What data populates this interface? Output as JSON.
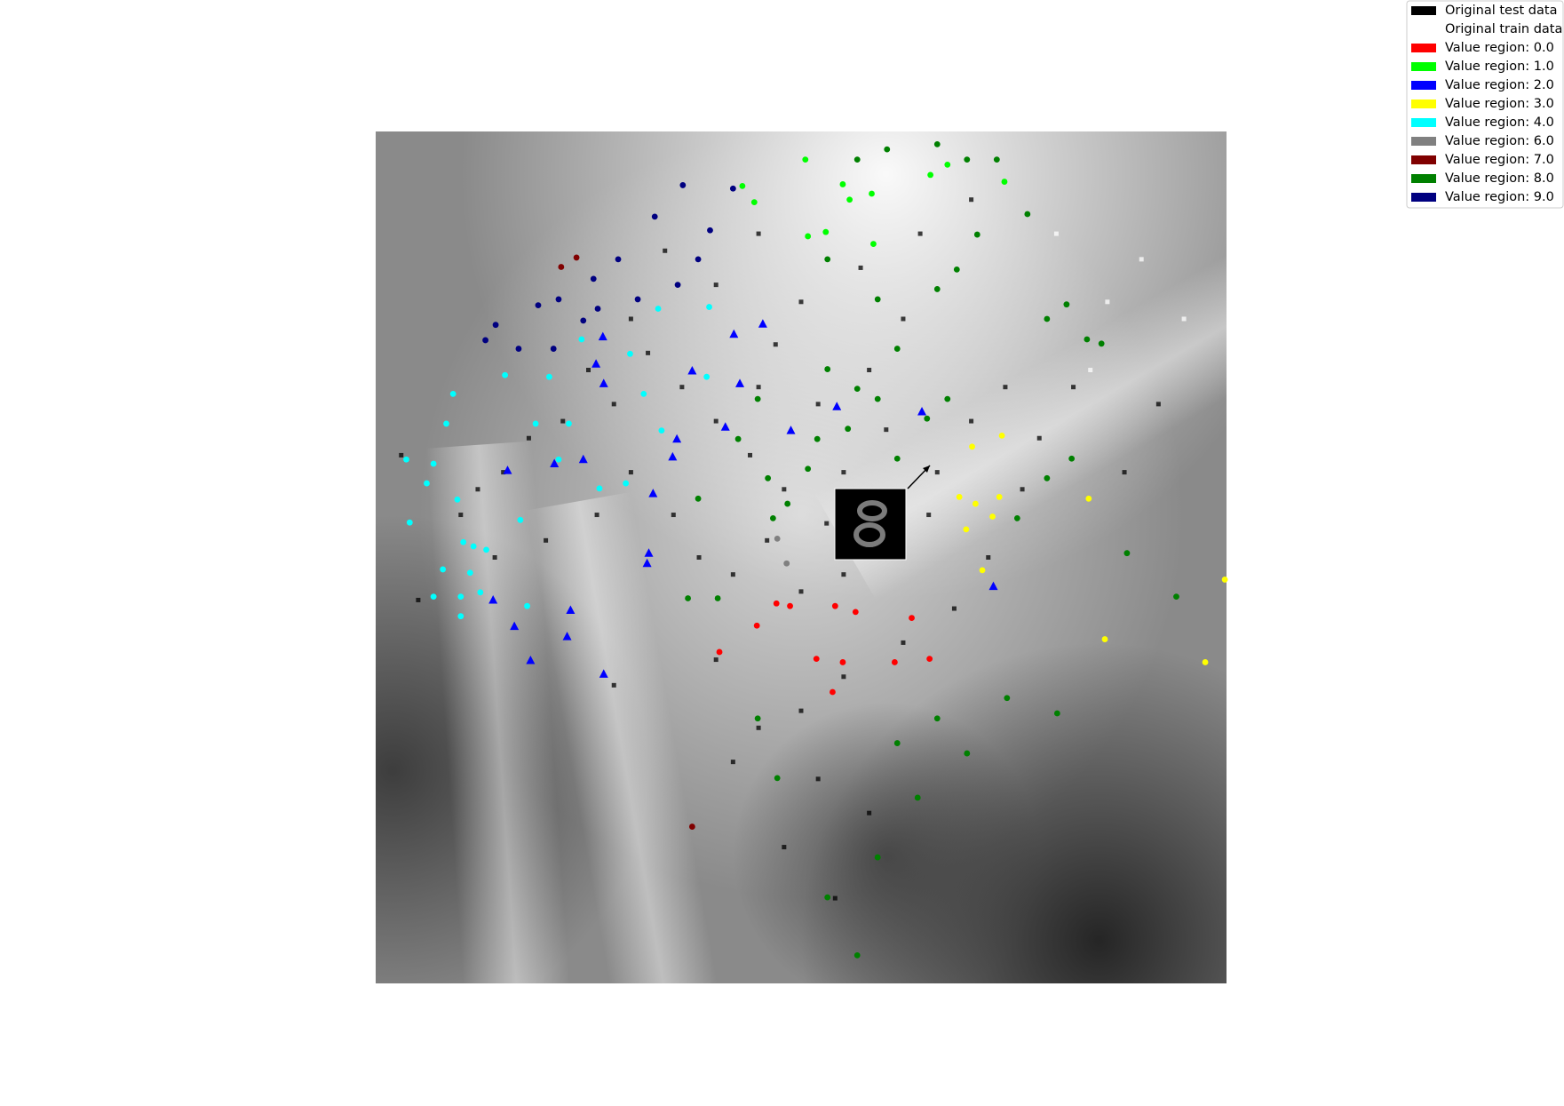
{
  "chart_data": {
    "type": "scatter",
    "xlim": [
      0,
      100
    ],
    "ylim": [
      0,
      100
    ],
    "legend": "upper right",
    "series": [
      {
        "name": "Original test data",
        "color": "#000000",
        "marker": "s",
        "x": [
          45,
          47,
          50,
          52,
          55,
          58,
          60,
          62,
          65,
          48,
          44,
          40,
          36,
          32,
          28,
          25,
          22,
          18,
          15,
          12,
          10,
          14,
          20,
          26,
          30,
          35,
          38,
          42,
          50,
          55,
          60,
          66,
          70,
          74,
          78,
          76,
          72,
          68,
          62,
          55,
          50,
          45,
          52,
          58,
          48,
          54,
          42,
          40,
          46,
          53,
          57,
          45,
          40,
          34,
          30,
          64,
          70,
          3,
          5,
          28,
          92,
          88,
          82
        ],
        "y": [
          70,
          75,
          80,
          68,
          60,
          72,
          65,
          78,
          55,
          58,
          62,
          66,
          70,
          74,
          68,
          72,
          66,
          64,
          60,
          58,
          55,
          50,
          52,
          55,
          60,
          55,
          50,
          48,
          46,
          48,
          50,
          60,
          66,
          70,
          64,
          58,
          50,
          44,
          40,
          36,
          32,
          30,
          24,
          20,
          16,
          10,
          26,
          38,
          52,
          54,
          84,
          88,
          82,
          86,
          78,
          88,
          92,
          62,
          45,
          35,
          68,
          60,
          70
        ]
      },
      {
        "name": "Original train data",
        "color": "#ffffff",
        "marker": "s",
        "x": [
          86,
          90,
          95,
          80,
          84
        ],
        "y": [
          80,
          85,
          78,
          88,
          72
        ]
      },
      {
        "name": "Value region: 0.0",
        "color": "#ff0000",
        "marker": "o",
        "x": [
          47.1,
          48.7,
          54.0,
          56.4,
          63.0,
          44.8,
          40.4,
          51.8,
          54.9,
          61.0,
          53.7,
          65.1
        ],
        "y": [
          44.6,
          44.3,
          44.3,
          43.6,
          42.9,
          42.0,
          38.9,
          38.1,
          37.7,
          37.7,
          34.2,
          38.1
        ]
      },
      {
        "name": "Value region: 1.0",
        "color": "#00ff00",
        "marker": "o",
        "x": [
          50.5,
          54.9,
          58.3,
          50.8,
          52.9,
          58.5,
          43.1,
          44.5,
          55.7,
          73.9,
          65.2,
          67.2
        ],
        "y": [
          96.7,
          93.8,
          92.7,
          87.7,
          88.2,
          86.8,
          93.6,
          91.7,
          92.0,
          94.1,
          94.9,
          96.1
        ]
      },
      {
        "name": "Value region: 2.0",
        "color": "#0000ff",
        "marker": "^",
        "x": [
          26.7,
          25.9,
          37.2,
          42.1,
          45.5,
          42.8,
          26.8,
          54.2,
          64.2,
          48.8,
          41.1,
          35.4,
          34.9,
          24.4,
          21.0,
          15.5,
          32.6,
          32.1,
          31.9,
          13.8,
          22.9,
          16.3,
          22.5,
          18.2,
          26.8,
          72.6
        ],
        "y": [
          75.9,
          72.7,
          71.9,
          76.2,
          77.4,
          70.4,
          70.4,
          67.7,
          67.1,
          64.9,
          65.3,
          63.9,
          61.8,
          61.5,
          61.0,
          60.2,
          57.5,
          50.5,
          49.3,
          45.0,
          43.8,
          41.9,
          40.7,
          37.9,
          36.3,
          46.6
        ]
      },
      {
        "name": "Value region: 3.0",
        "color": "#ffff00",
        "marker": "o",
        "x": [
          70.1,
          73.6,
          68.6,
          70.5,
          73.3,
          72.5,
          69.4,
          83.8,
          99.8,
          85.7,
          97.5,
          71.3
        ],
        "y": [
          63.0,
          64.3,
          57.1,
          56.3,
          57.1,
          54.8,
          53.3,
          56.9,
          47.4,
          40.4,
          37.7,
          48.5
        ]
      },
      {
        "name": "Value region: 4.0",
        "color": "#00ffff",
        "marker": "o",
        "x": [
          3.6,
          6.8,
          4.0,
          6.0,
          9.6,
          8.3,
          9.1,
          10.3,
          11.5,
          13.0,
          7.9,
          11.1,
          6.8,
          10.0,
          12.3,
          10.0,
          17.8,
          15.2,
          20.4,
          24.2,
          29.9,
          33.2,
          39.2,
          38.9,
          31.5,
          33.6,
          26.3,
          29.4,
          17.0,
          18.8,
          22.7,
          21.5
        ],
        "y": [
          61.5,
          61.0,
          54.1,
          58.7,
          56.8,
          65.7,
          69.2,
          51.8,
          51.3,
          50.9,
          48.6,
          48.2,
          45.4,
          45.4,
          45.9,
          43.1,
          44.3,
          71.4,
          71.2,
          75.6,
          73.9,
          79.2,
          79.4,
          71.2,
          69.2,
          64.9,
          58.1,
          58.7,
          54.4,
          65.7,
          65.7,
          61.5
        ]
      },
      {
        "name": "Value region: 6.0",
        "color": "#808080",
        "marker": "o",
        "x": [
          48.3,
          47.2
        ],
        "y": [
          49.3,
          52.2
        ]
      },
      {
        "name": "Value region: 7.0",
        "color": "#800000",
        "marker": "o",
        "x": [
          23.6,
          21.8,
          37.2
        ],
        "y": [
          85.2,
          84.1,
          18.4
        ]
      },
      {
        "name": "Value region: 8.0",
        "color": "#008000",
        "marker": "o",
        "x": [
          48.4,
          46.7,
          50.8,
          55.5,
          59.0,
          61.3,
          66.0,
          68.3,
          70.7,
          78.9,
          83.6,
          85.3,
          46.1,
          42.6,
          37.9,
          36.7,
          40.2,
          53.1,
          59.0,
          53.1,
          56.6,
          44.9,
          51.9,
          61.3,
          64.8,
          67.2,
          56.6,
          60.1,
          66.0,
          69.5,
          73.0,
          76.6,
          81.2,
          74.2,
          66.0,
          61.3,
          69.5,
          59.0,
          56.6,
          53.1,
          47.2,
          44.9,
          63.7,
          80.1,
          94.1,
          88.3,
          81.8,
          78.9,
          75.4
        ],
        "y": [
          56.3,
          54.6,
          60.4,
          65.1,
          68.6,
          74.5,
          81.5,
          83.8,
          87.9,
          78.0,
          75.6,
          75.1,
          59.3,
          63.9,
          56.9,
          45.2,
          45.2,
          85.0,
          80.3,
          72.1,
          69.8,
          68.6,
          63.9,
          61.6,
          66.3,
          68.6,
          96.7,
          97.9,
          98.5,
          96.7,
          96.7,
          90.3,
          79.7,
          33.5,
          31.1,
          28.2,
          27.0,
          14.8,
          3.3,
          10.1,
          24.1,
          31.1,
          21.8,
          31.7,
          45.4,
          50.5,
          61.6,
          59.3,
          54.6
        ]
      },
      {
        "name": "Value region: 9.0",
        "color": "#000080",
        "marker": "o",
        "x": [
          36.1,
          42.0,
          39.3,
          32.8,
          28.5,
          25.6,
          21.5,
          14.1,
          19.1,
          12.9,
          20.9,
          26.1,
          30.8,
          35.5,
          37.9,
          16.8,
          24.4
        ],
        "y": [
          93.7,
          93.3,
          88.4,
          90.0,
          85.0,
          82.7,
          80.3,
          77.3,
          79.6,
          75.5,
          74.5,
          79.2,
          80.3,
          82.0,
          85.0,
          74.5,
          77.8
        ]
      }
    ]
  }
}
